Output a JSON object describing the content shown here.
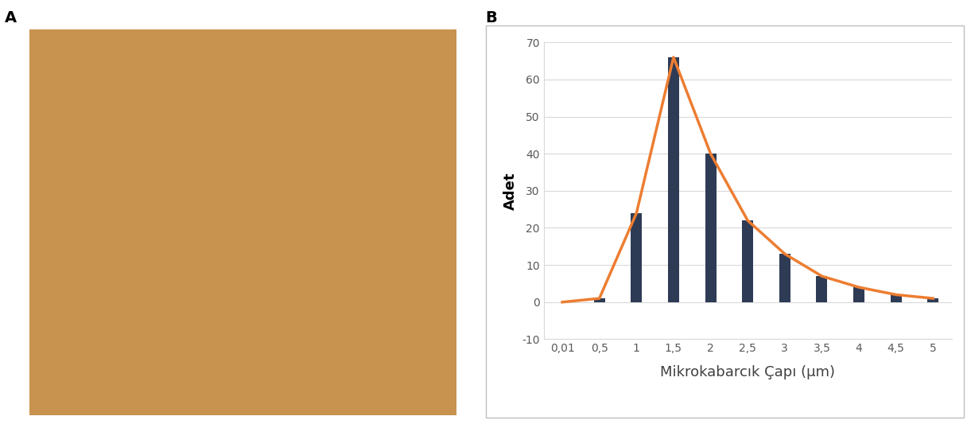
{
  "panel_labels": [
    "A",
    "B"
  ],
  "chart_data": {
    "type": "bar",
    "x_label": "Mikrokabarcık Çapı (µm)",
    "y_label": "Adet",
    "categories": [
      "0,01",
      "0,5",
      "1",
      "1,5",
      "2",
      "2,5",
      "3",
      "3,5",
      "4",
      "4,5",
      "5"
    ],
    "series": [
      {
        "type": "bar",
        "color": "#2e3b55",
        "values": [
          0,
          1,
          24,
          66,
          40,
          22,
          13,
          7,
          4,
          2,
          1
        ]
      },
      {
        "type": "line",
        "color": "#ed7d31",
        "values": [
          0,
          1,
          24,
          66,
          40,
          22,
          13,
          7,
          4,
          2,
          1
        ]
      }
    ],
    "ylim": [
      -10,
      70
    ],
    "yticks": [
      -10,
      0,
      10,
      20,
      30,
      40,
      50,
      60,
      70
    ],
    "grid": true
  }
}
